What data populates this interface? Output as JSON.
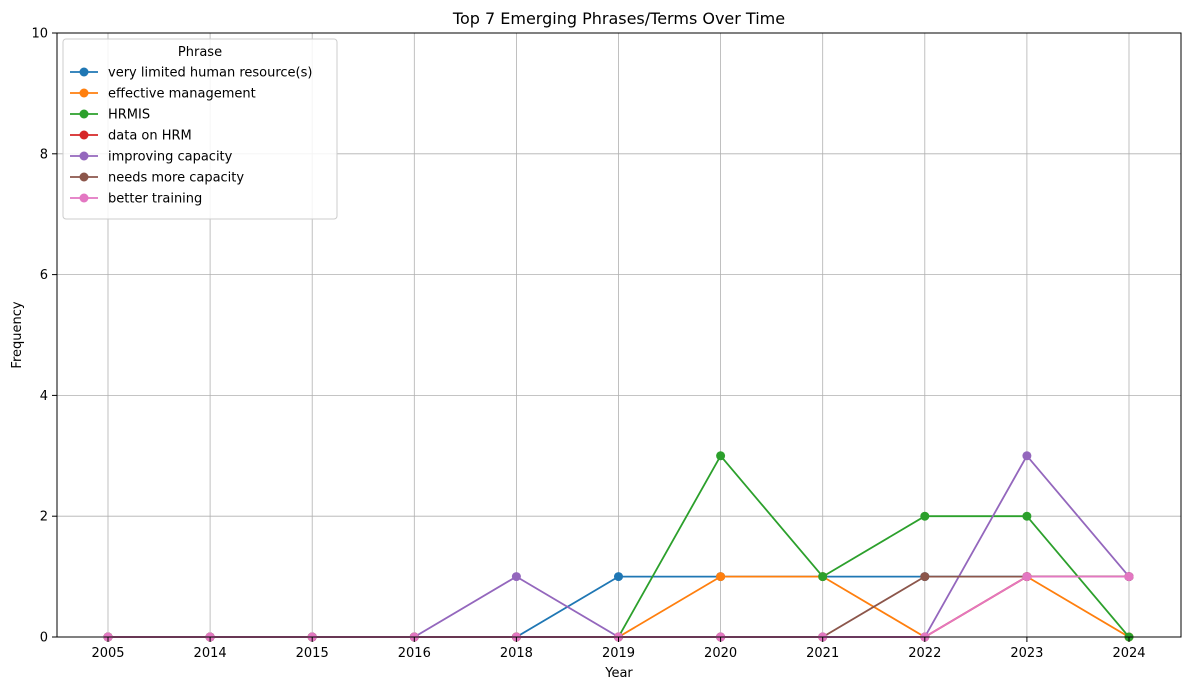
{
  "chart_data": {
    "type": "line",
    "title": "Top 7 Emerging Phrases/Terms Over Time",
    "xlabel": "Year",
    "ylabel": "Frequency",
    "categories": [
      "2005",
      "2014",
      "2015",
      "2016",
      "2018",
      "2019",
      "2020",
      "2021",
      "2022",
      "2023",
      "2024"
    ],
    "ylim": [
      0,
      10
    ],
    "yticks": [
      0,
      2,
      4,
      6,
      8,
      10
    ],
    "grid": true,
    "legend": {
      "title": "Phrase",
      "placement": "top-left"
    },
    "series": [
      {
        "name": "very limited human resource(s)",
        "color": "#1f77b4",
        "values": [
          0,
          0,
          0,
          0,
          0,
          1,
          1,
          1,
          1,
          1,
          1
        ]
      },
      {
        "name": "effective management",
        "color": "#ff7f0e",
        "values": [
          0,
          0,
          0,
          0,
          0,
          0,
          1,
          1,
          0,
          1,
          0
        ]
      },
      {
        "name": "HRMIS",
        "color": "#2ca02c",
        "values": [
          0,
          0,
          0,
          0,
          0,
          0,
          3,
          1,
          2,
          2,
          0
        ]
      },
      {
        "name": "data on HRM",
        "color": "#d62728",
        "values": [
          0,
          0,
          0,
          0,
          0,
          0,
          0,
          0,
          0,
          1,
          1
        ]
      },
      {
        "name": "improving capacity",
        "color": "#9467bd",
        "values": [
          0,
          0,
          0,
          0,
          1,
          0,
          0,
          0,
          0,
          3,
          1
        ]
      },
      {
        "name": "needs more capacity",
        "color": "#8c564b",
        "values": [
          0,
          0,
          0,
          0,
          0,
          0,
          0,
          0,
          1,
          1,
          1
        ]
      },
      {
        "name": "better training",
        "color": "#e377c2",
        "values": [
          0,
          0,
          0,
          0,
          0,
          0,
          0,
          0,
          0,
          1,
          1
        ]
      }
    ]
  }
}
